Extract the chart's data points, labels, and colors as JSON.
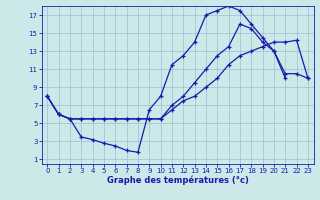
{
  "xlabel": "Graphe des températures (°c)",
  "bg_color": "#cce8e8",
  "line_color": "#1a1aaa",
  "xlim": [
    -0.5,
    23.5
  ],
  "ylim": [
    0.5,
    18.0
  ],
  "xticks": [
    0,
    1,
    2,
    3,
    4,
    5,
    6,
    7,
    8,
    9,
    10,
    11,
    12,
    13,
    14,
    15,
    16,
    17,
    18,
    19,
    20,
    21,
    22,
    23
  ],
  "yticks": [
    1,
    3,
    5,
    7,
    9,
    11,
    13,
    15,
    17
  ],
  "c1x": [
    0,
    1,
    2,
    3,
    4,
    5,
    6,
    7,
    8,
    9,
    10,
    11,
    12,
    13,
    14,
    15,
    16,
    17,
    18,
    19,
    20,
    21
  ],
  "c1y": [
    8.0,
    6.0,
    5.5,
    3.5,
    3.2,
    2.8,
    2.5,
    2.0,
    1.8,
    6.5,
    8.0,
    11.5,
    12.5,
    14.0,
    17.0,
    17.5,
    18.0,
    17.5,
    16.0,
    14.5,
    13.0,
    10.0
  ],
  "c2x": [
    0,
    1,
    2,
    3,
    4,
    5,
    6,
    7,
    8,
    9,
    10,
    11,
    12,
    13,
    14,
    15,
    16,
    17,
    18,
    19,
    20,
    21,
    22,
    23
  ],
  "c2y": [
    8.0,
    6.0,
    5.5,
    5.5,
    5.5,
    5.5,
    5.5,
    5.5,
    5.5,
    5.5,
    5.5,
    7.0,
    8.0,
    9.5,
    11.0,
    12.5,
    13.5,
    16.0,
    15.5,
    14.0,
    13.0,
    10.5,
    10.5,
    10.0
  ],
  "c3x": [
    0,
    1,
    2,
    3,
    4,
    5,
    6,
    7,
    8,
    9,
    10,
    11,
    12,
    13,
    14,
    15,
    16,
    17,
    18,
    19,
    20,
    21,
    22,
    23
  ],
  "c3y": [
    8.0,
    6.0,
    5.5,
    5.5,
    5.5,
    5.5,
    5.5,
    5.5,
    5.5,
    5.5,
    5.5,
    6.5,
    7.5,
    8.0,
    9.0,
    10.0,
    11.5,
    12.5,
    13.0,
    13.5,
    14.0,
    14.0,
    14.2,
    10.0
  ]
}
